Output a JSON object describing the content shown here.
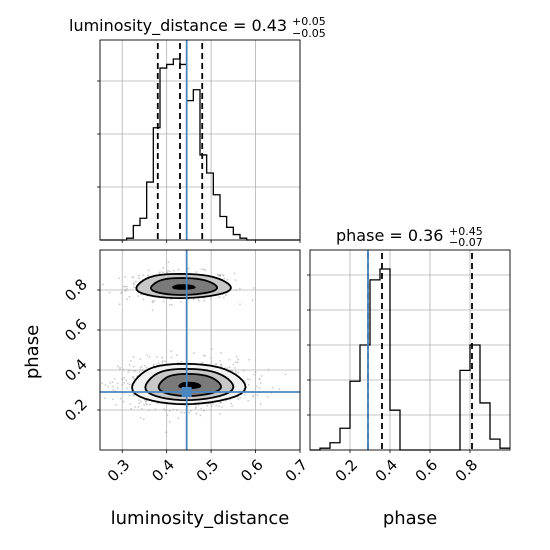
{
  "chart_data": {
    "type": "corner",
    "parameters": [
      "luminosity_distance",
      "phase"
    ],
    "truths": {
      "luminosity_distance": 0.445,
      "phase": 0.29
    },
    "truth_color": "#4a86c0",
    "histogram_color": "#000000",
    "grid": true,
    "panels": [
      {
        "name": "luminosity_distance-marginal",
        "type": "step-histogram",
        "title": {
          "prefix": "luminosity_distance = ",
          "value": "0.43",
          "upper": "+0.05",
          "lower": "−0.05"
        },
        "xlim": [
          0.25,
          0.7
        ],
        "bin_edges": [
          0.25,
          0.265,
          0.28,
          0.295,
          0.31,
          0.325,
          0.34,
          0.355,
          0.37,
          0.385,
          0.4,
          0.415,
          0.43,
          0.445,
          0.46,
          0.475,
          0.49,
          0.505,
          0.52,
          0.535,
          0.55,
          0.565,
          0.58,
          0.595,
          0.61,
          0.625,
          0.64,
          0.655,
          0.67,
          0.685,
          0.7
        ],
        "counts": [
          0,
          0,
          0,
          0,
          0.01,
          0.08,
          0.12,
          0.32,
          0.62,
          0.95,
          0.97,
          1.0,
          0.97,
          0.77,
          0.83,
          0.47,
          0.37,
          0.25,
          0.13,
          0.07,
          0.03,
          0.01,
          0,
          0,
          0,
          0,
          0,
          0,
          0,
          0
        ],
        "quantile_lines": [
          0.38,
          0.43,
          0.48
        ],
        "truth": 0.445
      },
      {
        "name": "phase-marginal",
        "type": "step-histogram",
        "title": {
          "prefix": "phase = ",
          "value": "0.36",
          "upper": "+0.45",
          "lower": "−0.07"
        },
        "xlim": [
          0.0,
          1.0
        ],
        "xticks": [
          "0.2",
          "0.4",
          "0.6",
          "0.8"
        ],
        "xlabel": "phase",
        "bin_edges": [
          0.0,
          0.05,
          0.1,
          0.15,
          0.2,
          0.25,
          0.3,
          0.35,
          0.4,
          0.45,
          0.5,
          0.55,
          0.6,
          0.65,
          0.7,
          0.75,
          0.8,
          0.85,
          0.9,
          0.95,
          1.0
        ],
        "counts": [
          0,
          0.01,
          0.04,
          0.12,
          0.38,
          0.58,
          0.94,
          1.0,
          0.22,
          0,
          0,
          0,
          0,
          0,
          0,
          0.44,
          0.58,
          0.26,
          0.06,
          0.01
        ],
        "quantile_lines": [
          0.29,
          0.36,
          0.81
        ],
        "truth": 0.29
      },
      {
        "name": "2d-density",
        "type": "contour-scatter",
        "xlim": [
          0.25,
          0.7
        ],
        "ylim": [
          0.0,
          1.0
        ],
        "xticks": [
          "0.3",
          "0.4",
          "0.5",
          "0.6",
          "0.7"
        ],
        "yticks": [
          "0.2",
          "0.4",
          "0.6",
          "0.8"
        ],
        "xlabel": "luminosity_distance",
        "ylabel": "phase",
        "modes": [
          {
            "center": [
              0.43,
              0.82
            ],
            "spread": [
              0.05,
              0.03
            ],
            "contour_levels": 3
          },
          {
            "center": [
              0.44,
              0.33
            ],
            "spread": [
              0.06,
              0.05
            ],
            "contour_levels": 4
          }
        ],
        "truth": [
          0.445,
          0.29
        ]
      }
    ]
  }
}
